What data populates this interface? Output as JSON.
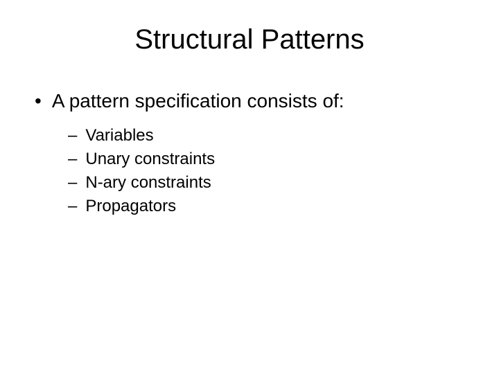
{
  "slide": {
    "title": "Structural Patterns",
    "main_bullet": "A pattern specification consists of:",
    "sub_bullets": [
      "Variables",
      "Unary constraints",
      "N-ary constraints",
      "Propagators"
    ]
  },
  "styling": {
    "background_color": "#ffffff",
    "text_color": "#000000",
    "title_fontsize": 40,
    "level1_fontsize": 28,
    "level2_fontsize": 24,
    "font_family": "Arial"
  }
}
